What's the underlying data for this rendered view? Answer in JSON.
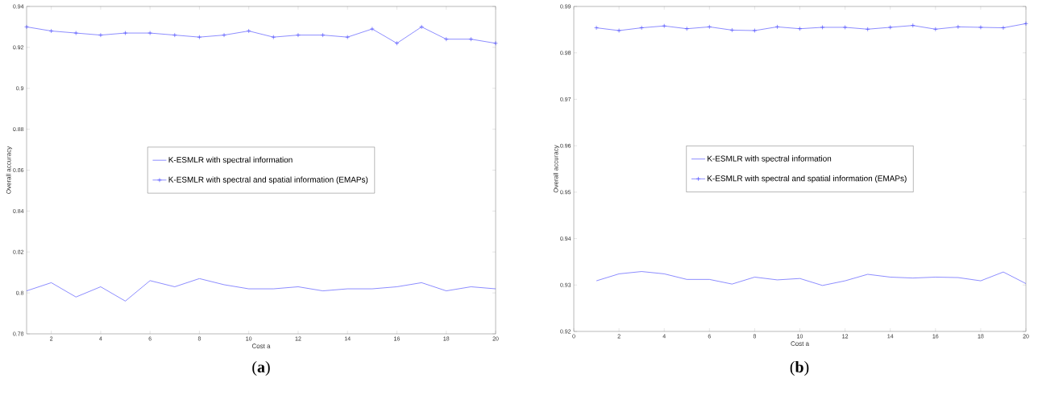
{
  "chart_data": [
    {
      "type": "line",
      "xlabel": "Cost a",
      "ylabel": "Overall accuracy",
      "x": [
        1,
        2,
        3,
        4,
        5,
        6,
        7,
        8,
        9,
        10,
        11,
        12,
        13,
        14,
        15,
        16,
        17,
        18,
        19,
        20
      ],
      "series": [
        {
          "name": "K-ESMLR with spectral information",
          "color": "#4040ff",
          "marker": "none",
          "values": [
            0.801,
            0.805,
            0.798,
            0.803,
            0.796,
            0.806,
            0.803,
            0.807,
            0.804,
            0.802,
            0.802,
            0.803,
            0.801,
            0.802,
            0.802,
            0.803,
            0.805,
            0.801,
            0.803,
            0.802
          ]
        },
        {
          "name": "K-ESMLR with spectral and spatial information (EMAPs)",
          "color": "#4040ff",
          "marker": "cross",
          "values": [
            0.93,
            0.928,
            0.927,
            0.926,
            0.927,
            0.927,
            0.926,
            0.925,
            0.926,
            0.928,
            0.925,
            0.926,
            0.926,
            0.925,
            0.929,
            0.922,
            0.93,
            0.924,
            0.924,
            0.922
          ]
        }
      ],
      "xlim": [
        1,
        20
      ],
      "xticks": [
        2,
        4,
        6,
        8,
        10,
        12,
        14,
        16,
        18,
        20
      ],
      "ylim": [
        0.78,
        0.94
      ],
      "yticks": [
        0.78,
        0.8,
        0.82,
        0.84,
        0.86,
        0.88,
        0.9,
        0.92,
        0.94
      ],
      "legend": "center",
      "grid": false,
      "line_style": "solid",
      "annotations": [
        "(**a**)"
      ]
    },
    {
      "type": "line",
      "xlabel": "Cost a",
      "ylabel": "Overall accuracy",
      "x": [
        1,
        2,
        3,
        4,
        5,
        6,
        7,
        8,
        9,
        10,
        11,
        12,
        13,
        14,
        15,
        16,
        17,
        18,
        19,
        20
      ],
      "series": [
        {
          "name": "K-ESMLR with spectral information",
          "color": "#4040ff",
          "marker": "none",
          "values": [
            0.9309,
            0.9324,
            0.9329,
            0.9324,
            0.9312,
            0.9312,
            0.9302,
            0.9317,
            0.9311,
            0.9314,
            0.9299,
            0.9309,
            0.9323,
            0.9317,
            0.9315,
            0.9317,
            0.9316,
            0.9309,
            0.9328,
            0.9303
          ]
        },
        {
          "name": "K-ESMLR with spectral and spatial information (EMAPs)",
          "color": "#4040ff",
          "marker": "cross",
          "values": [
            0.9854,
            0.9848,
            0.9854,
            0.9858,
            0.9852,
            0.9856,
            0.9849,
            0.9848,
            0.9856,
            0.9852,
            0.9855,
            0.9855,
            0.9851,
            0.9855,
            0.9859,
            0.9851,
            0.9856,
            0.9855,
            0.9854,
            0.9863
          ]
        }
      ],
      "xlim": [
        0,
        20
      ],
      "xticks": [
        0,
        2,
        4,
        6,
        8,
        10,
        12,
        14,
        16,
        18,
        20
      ],
      "ylim": [
        0.92,
        0.99
      ],
      "yticks": [
        0.92,
        0.93,
        0.94,
        0.95,
        0.96,
        0.97,
        0.98,
        0.99
      ],
      "legend": "center",
      "grid": false,
      "line_style": "solid",
      "annotations": [
        "(**b**)"
      ]
    }
  ]
}
